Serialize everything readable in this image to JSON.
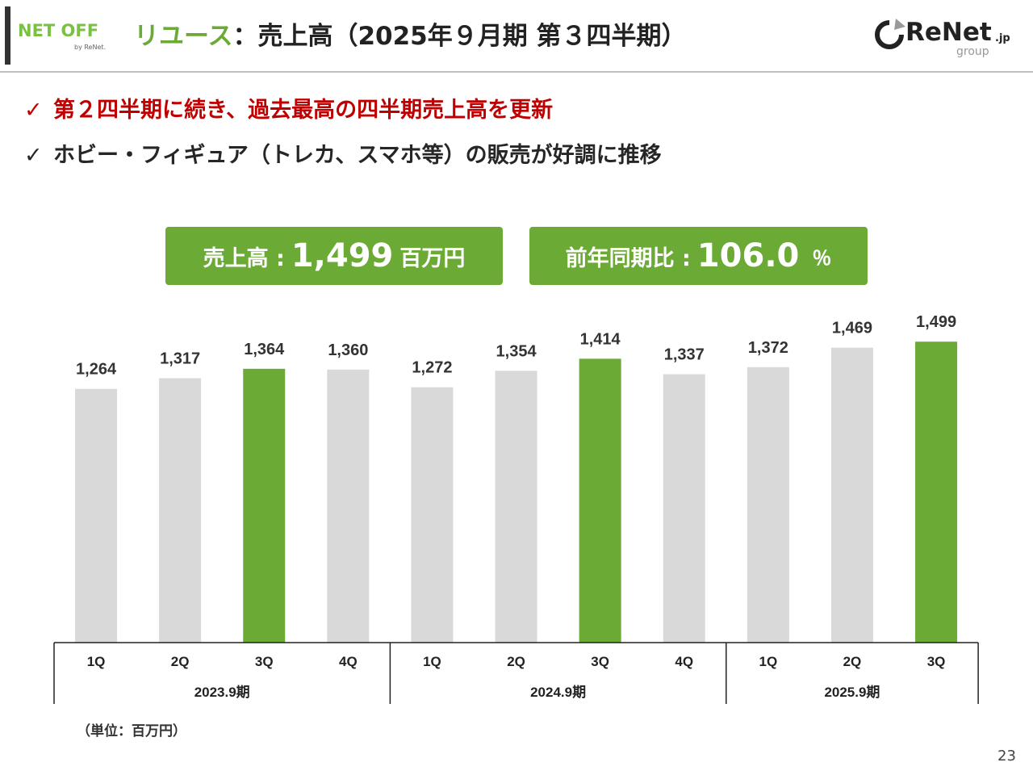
{
  "header": {
    "logo_left_text": "NET OFF",
    "logo_left_sub": "by ReNet.",
    "title_category": "リユース",
    "title_rest": "：売上高（2025年９月期 第３四半期）",
    "logo_right_text": "ReNet",
    "logo_right_suffix": ".jp",
    "logo_right_sub": "group"
  },
  "bullets": [
    {
      "check": "✓",
      "text": "第２四半期に続き、過去最高の四半期売上高を更新"
    },
    {
      "check": "✓",
      "text": "ホビー・フィギュア（トレカ、スマホ等）の販売が好調に推移"
    }
  ],
  "kpis": {
    "sales": {
      "label": "売上高 :",
      "value": "1,499",
      "unit": "百万円"
    },
    "yoy": {
      "label": "前年同期比 :",
      "value": "106.0",
      "unit": "％"
    }
  },
  "colors": {
    "accent": "#6aaa35",
    "bar_gray": "#d9d9d9",
    "highlight_text": "#c00000"
  },
  "chart_data": {
    "type": "bar",
    "categories": [
      "1Q",
      "2Q",
      "3Q",
      "4Q",
      "1Q",
      "2Q",
      "3Q",
      "4Q",
      "1Q",
      "2Q",
      "3Q"
    ],
    "groups": [
      {
        "label": "2023.9期",
        "count": 4
      },
      {
        "label": "2024.9期",
        "count": 4
      },
      {
        "label": "2025.9期",
        "count": 3
      }
    ],
    "values": [
      1264,
      1317,
      1364,
      1360,
      1272,
      1354,
      1414,
      1337,
      1372,
      1469,
      1499
    ],
    "value_labels": [
      "1,264",
      "1,317",
      "1,364",
      "1,360",
      "1,272",
      "1,354",
      "1,414",
      "1,337",
      "1,372",
      "1,469",
      "1,499"
    ],
    "highlight": [
      false,
      false,
      true,
      false,
      false,
      false,
      true,
      false,
      false,
      false,
      true
    ],
    "title": "",
    "xlabel": "",
    "ylabel": "",
    "ylim": [
      0,
      1500
    ],
    "grid": false,
    "legend": "none"
  },
  "footer": {
    "unit_note": "（単位：百万円）",
    "page_number": "23"
  }
}
